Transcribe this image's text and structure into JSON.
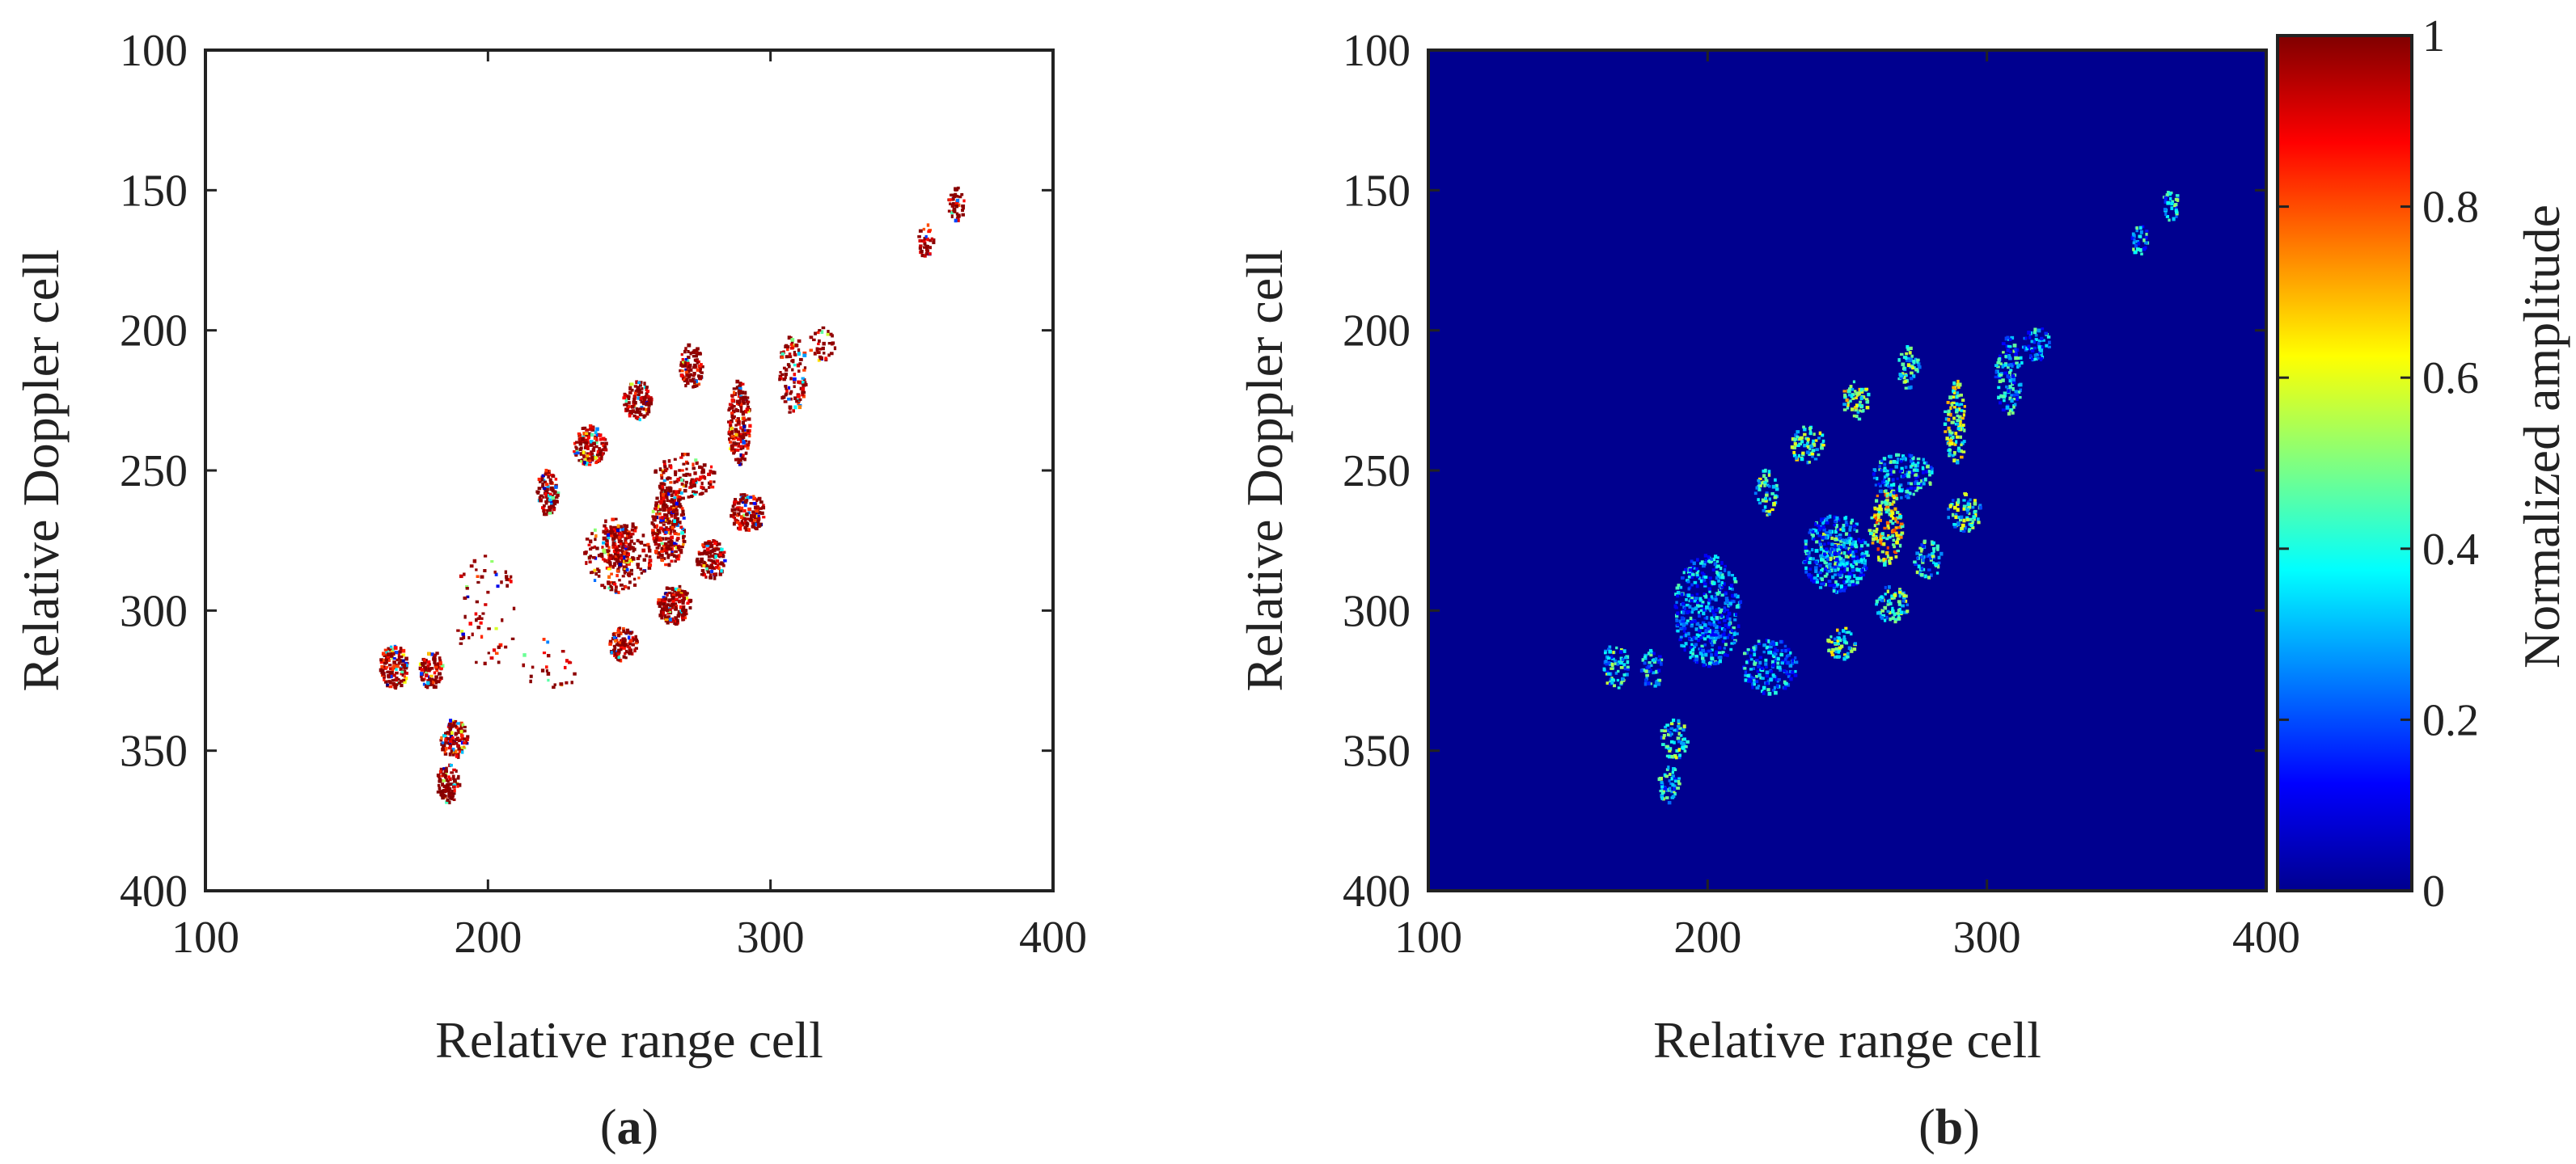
{
  "figure": {
    "caption_a": {
      "open": "(",
      "letter": "a",
      "close": ")"
    },
    "caption_b": {
      "open": "(",
      "letter": "b",
      "close": ")"
    },
    "colors": {
      "background_b": "#00008f",
      "axis": "#222222",
      "colormap": "jet"
    }
  },
  "chart_data": [
    {
      "id": "a",
      "type": "scatter",
      "title": "",
      "xlabel": "Relative range cell",
      "ylabel": "Relative Doppler cell",
      "xlim": [
        100,
        400
      ],
      "ylim": [
        400,
        100
      ],
      "y_reversed": true,
      "xticks": [
        "100",
        "200",
        "300",
        "400"
      ],
      "yticks": [
        "100",
        "150",
        "200",
        "250",
        "300",
        "350",
        "400"
      ],
      "background": "white",
      "point_colormap": "jet",
      "clusters": [
        {
          "x": 167,
          "y": 320,
          "rx": 5,
          "ry": 8,
          "density": 1.0
        },
        {
          "x": 180,
          "y": 321,
          "rx": 4,
          "ry": 7,
          "density": 1.0
        },
        {
          "x": 188,
          "y": 346,
          "rx": 5,
          "ry": 7,
          "density": 1.0
        },
        {
          "x": 186,
          "y": 362,
          "rx": 4,
          "ry": 7,
          "density": 1.0
        },
        {
          "x": 221,
          "y": 258,
          "rx": 4,
          "ry": 8,
          "density": 0.95
        },
        {
          "x": 236,
          "y": 241,
          "rx": 6,
          "ry": 7,
          "density": 1.0
        },
        {
          "x": 253,
          "y": 225,
          "rx": 5,
          "ry": 7,
          "density": 1.0
        },
        {
          "x": 272,
          "y": 213,
          "rx": 4,
          "ry": 8,
          "density": 0.95
        },
        {
          "x": 246,
          "y": 278,
          "rx": 6,
          "ry": 8,
          "density": 1.0
        },
        {
          "x": 264,
          "y": 270,
          "rx": 6,
          "ry": 14,
          "density": 1.0
        },
        {
          "x": 248,
          "y": 312,
          "rx": 5,
          "ry": 6,
          "density": 1.0
        },
        {
          "x": 266,
          "y": 298,
          "rx": 6,
          "ry": 7,
          "density": 1.0
        },
        {
          "x": 279,
          "y": 282,
          "rx": 5,
          "ry": 7,
          "density": 1.0
        },
        {
          "x": 292,
          "y": 265,
          "rx": 6,
          "ry": 7,
          "density": 1.0
        },
        {
          "x": 289,
          "y": 233,
          "rx": 4,
          "ry": 15,
          "density": 0.9
        },
        {
          "x": 270,
          "y": 252,
          "rx": 11,
          "ry": 8,
          "density": 0.4
        },
        {
          "x": 246,
          "y": 280,
          "rx": 12,
          "ry": 14,
          "density": 0.28
        },
        {
          "x": 308,
          "y": 216,
          "rx": 5,
          "ry": 14,
          "density": 0.45
        },
        {
          "x": 318,
          "y": 205,
          "rx": 5,
          "ry": 6,
          "density": 0.35
        },
        {
          "x": 355,
          "y": 168,
          "rx": 3,
          "ry": 6,
          "density": 0.6
        },
        {
          "x": 366,
          "y": 155,
          "rx": 3,
          "ry": 6,
          "density": 0.85
        },
        {
          "x": 200,
          "y": 300,
          "rx": 12,
          "ry": 20,
          "density": 0.08
        },
        {
          "x": 222,
          "y": 320,
          "rx": 10,
          "ry": 10,
          "density": 0.08
        }
      ]
    },
    {
      "id": "b",
      "type": "heatmap",
      "title": "",
      "xlabel": "Relative range cell",
      "ylabel": "Relative Doppler cell",
      "xlim": [
        100,
        400
      ],
      "ylim": [
        400,
        100
      ],
      "y_reversed": true,
      "xticks": [
        "100",
        "200",
        "300",
        "400"
      ],
      "yticks": [
        "100",
        "150",
        "200",
        "250",
        "300",
        "350",
        "400"
      ],
      "colorbar": {
        "label": "Normalized amplitude",
        "range": [
          0,
          1
        ],
        "ticks": [
          "0",
          "0.2",
          "0.4",
          "0.6",
          "0.8",
          "1"
        ],
        "colormap": "jet"
      },
      "clusters": [
        {
          "x": 167,
          "y": 320,
          "rx": 5,
          "ry": 8,
          "amp": 0.35
        },
        {
          "x": 180,
          "y": 321,
          "rx": 4,
          "ry": 7,
          "amp": 0.3
        },
        {
          "x": 188,
          "y": 346,
          "rx": 5,
          "ry": 7,
          "amp": 0.4
        },
        {
          "x": 186,
          "y": 362,
          "rx": 4,
          "ry": 7,
          "amp": 0.35
        },
        {
          "x": 221,
          "y": 258,
          "rx": 4,
          "ry": 8,
          "amp": 0.45
        },
        {
          "x": 236,
          "y": 241,
          "rx": 6,
          "ry": 7,
          "amp": 0.45
        },
        {
          "x": 253,
          "y": 225,
          "rx": 5,
          "ry": 7,
          "amp": 0.5
        },
        {
          "x": 272,
          "y": 213,
          "rx": 4,
          "ry": 8,
          "amp": 0.4
        },
        {
          "x": 246,
          "y": 278,
          "rx": 6,
          "ry": 8,
          "amp": 0.4
        },
        {
          "x": 264,
          "y": 270,
          "rx": 6,
          "ry": 14,
          "amp": 0.6
        },
        {
          "x": 248,
          "y": 312,
          "rx": 5,
          "ry": 6,
          "amp": 0.45
        },
        {
          "x": 266,
          "y": 298,
          "rx": 6,
          "ry": 7,
          "amp": 0.4
        },
        {
          "x": 279,
          "y": 282,
          "rx": 5,
          "ry": 7,
          "amp": 0.35
        },
        {
          "x": 292,
          "y": 265,
          "rx": 6,
          "ry": 7,
          "amp": 0.4
        },
        {
          "x": 289,
          "y": 233,
          "rx": 4,
          "ry": 15,
          "amp": 0.5
        },
        {
          "x": 270,
          "y": 252,
          "rx": 11,
          "ry": 8,
          "amp": 0.3
        },
        {
          "x": 246,
          "y": 280,
          "rx": 12,
          "ry": 14,
          "amp": 0.25
        },
        {
          "x": 308,
          "y": 216,
          "rx": 5,
          "ry": 14,
          "amp": 0.3
        },
        {
          "x": 318,
          "y": 205,
          "rx": 5,
          "ry": 6,
          "amp": 0.25
        },
        {
          "x": 355,
          "y": 168,
          "rx": 3,
          "ry": 6,
          "amp": 0.3
        },
        {
          "x": 366,
          "y": 155,
          "rx": 3,
          "ry": 6,
          "amp": 0.35
        },
        {
          "x": 200,
          "y": 300,
          "rx": 12,
          "ry": 20,
          "amp": 0.25
        },
        {
          "x": 222,
          "y": 320,
          "rx": 10,
          "ry": 10,
          "amp": 0.25
        }
      ]
    }
  ]
}
